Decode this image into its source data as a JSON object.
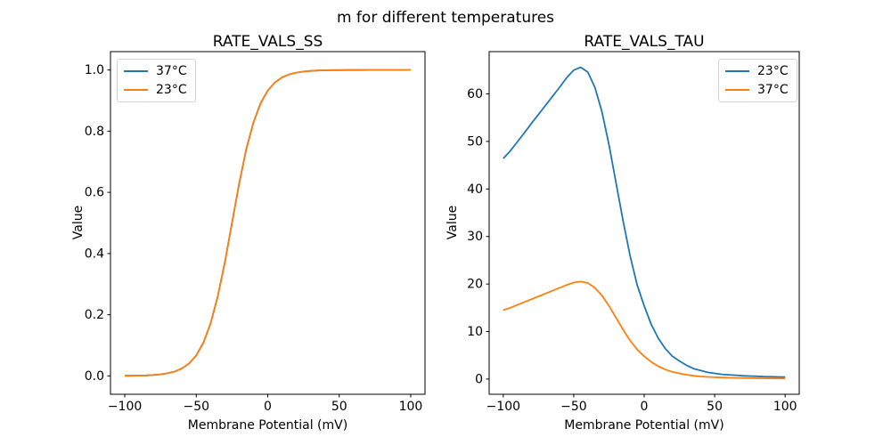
{
  "figure": {
    "suptitle": "m for different temperatures",
    "background": "#ffffff",
    "text_color": "#000000"
  },
  "palette": {
    "blue": "#1f77b4",
    "orange": "#ff7f0e"
  },
  "chart_data": [
    {
      "id": "ss",
      "type": "line",
      "title": "RATE_VALS_SS",
      "xlabel": "Membrane Potential (mV)",
      "ylabel": "Value",
      "xlim": [
        -110,
        110
      ],
      "ylim": [
        -0.06,
        1.06
      ],
      "grid": false,
      "xticks": [
        -100,
        -50,
        0,
        50,
        100
      ],
      "xtick_labels": [
        "−100",
        "−50",
        "0",
        "50",
        "100"
      ],
      "yticks": [
        0.0,
        0.2,
        0.4,
        0.6,
        0.8,
        1.0
      ],
      "ytick_labels": [
        "0.0",
        "0.2",
        "0.4",
        "0.6",
        "0.8",
        "1.0"
      ],
      "legend": {
        "position": "upper-left",
        "entries": [
          {
            "label": "37°C",
            "color": "#1f77b4"
          },
          {
            "label": "23°C",
            "color": "#ff7f0e"
          }
        ]
      },
      "x": [
        -100,
        -95,
        -90,
        -85,
        -80,
        -75,
        -70,
        -65,
        -60,
        -55,
        -50,
        -45,
        -40,
        -35,
        -30,
        -25,
        -20,
        -15,
        -10,
        -5,
        0,
        5,
        10,
        15,
        20,
        25,
        30,
        35,
        40,
        45,
        50,
        55,
        60,
        65,
        70,
        75,
        80,
        85,
        90,
        95,
        100
      ],
      "series": [
        {
          "name": "37°C",
          "color": "#1f77b4",
          "values": [
            0.0004,
            0.0006,
            0.0011,
            0.0018,
            0.0031,
            0.0052,
            0.0087,
            0.0146,
            0.0245,
            0.0408,
            0.0672,
            0.1086,
            0.1709,
            0.2587,
            0.3714,
            0.5,
            0.6286,
            0.7413,
            0.8291,
            0.8914,
            0.9329,
            0.9592,
            0.9755,
            0.9854,
            0.9913,
            0.9948,
            0.9969,
            0.9982,
            0.9989,
            0.9994,
            0.9996,
            0.9998,
            0.9999,
            0.9999,
            1.0,
            1.0,
            1.0,
            1.0,
            1.0,
            1.0,
            1.0
          ]
        },
        {
          "name": "23°C",
          "color": "#ff7f0e",
          "values": [
            0.0004,
            0.0006,
            0.0011,
            0.0018,
            0.0031,
            0.0052,
            0.0087,
            0.0146,
            0.0245,
            0.0408,
            0.0672,
            0.1086,
            0.1709,
            0.2587,
            0.3714,
            0.5,
            0.6286,
            0.7413,
            0.8291,
            0.8914,
            0.9329,
            0.9592,
            0.9755,
            0.9854,
            0.9913,
            0.9948,
            0.9969,
            0.9982,
            0.9989,
            0.9994,
            0.9996,
            0.9998,
            0.9999,
            0.9999,
            1.0,
            1.0,
            1.0,
            1.0,
            1.0,
            1.0,
            1.0
          ]
        }
      ]
    },
    {
      "id": "tau",
      "type": "line",
      "title": "RATE_VALS_TAU",
      "xlabel": "Membrane Potential (mV)",
      "ylabel": "Value",
      "xlim": [
        -110,
        110
      ],
      "ylim": [
        -3.2,
        68.9
      ],
      "grid": false,
      "xticks": [
        -100,
        -50,
        0,
        50,
        100
      ],
      "xtick_labels": [
        "−100",
        "−50",
        "0",
        "50",
        "100"
      ],
      "yticks": [
        0,
        10,
        20,
        30,
        40,
        50,
        60
      ],
      "ytick_labels": [
        "0",
        "10",
        "20",
        "30",
        "40",
        "50",
        "60"
      ],
      "legend": {
        "position": "upper-right",
        "entries": [
          {
            "label": "23°C",
            "color": "#1f77b4"
          },
          {
            "label": "37°C",
            "color": "#ff7f0e"
          }
        ]
      },
      "x": [
        -100,
        -95,
        -90,
        -85,
        -80,
        -75,
        -70,
        -65,
        -60,
        -55,
        -50,
        -45,
        -40,
        -35,
        -30,
        -25,
        -20,
        -15,
        -10,
        -5,
        0,
        5,
        10,
        15,
        20,
        25,
        30,
        35,
        40,
        45,
        50,
        55,
        60,
        65,
        70,
        75,
        80,
        85,
        90,
        95,
        100
      ],
      "series": [
        {
          "name": "23°C",
          "color": "#1f77b4",
          "values": [
            46.4,
            48.0,
            49.9,
            51.8,
            53.8,
            55.7,
            57.6,
            59.5,
            61.4,
            63.4,
            65.0,
            65.6,
            64.6,
            61.4,
            56.3,
            49.3,
            41.3,
            33.3,
            25.9,
            19.8,
            15.4,
            11.5,
            8.6,
            6.4,
            4.8,
            3.8,
            2.9,
            2.2,
            1.8,
            1.4,
            1.2,
            1.0,
            0.9,
            0.8,
            0.7,
            0.64,
            0.58,
            0.51,
            0.48,
            0.45,
            0.42
          ]
        },
        {
          "name": "37°C",
          "color": "#ff7f0e",
          "values": [
            14.5,
            15.0,
            15.6,
            16.2,
            16.8,
            17.4,
            18.0,
            18.6,
            19.2,
            19.8,
            20.3,
            20.5,
            20.2,
            19.2,
            17.6,
            15.4,
            12.9,
            10.4,
            8.1,
            6.2,
            4.8,
            3.6,
            2.7,
            2.0,
            1.5,
            1.2,
            0.9,
            0.7,
            0.55,
            0.45,
            0.38,
            0.32,
            0.28,
            0.25,
            0.22,
            0.2,
            0.18,
            0.16,
            0.15,
            0.14,
            0.13
          ]
        }
      ]
    }
  ]
}
